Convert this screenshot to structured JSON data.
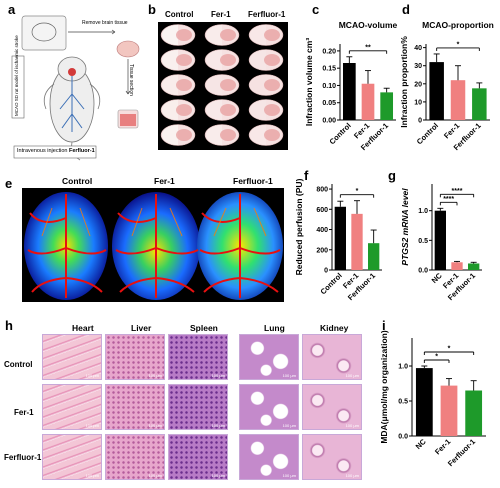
{
  "panels": {
    "a": {
      "letter": "a",
      "remove_brain": "Remove brain tissue",
      "tissue_section": "Tissue section",
      "model_text": "MCAO SD rat model of ischaemic stroke",
      "injection_prefix": "Intravenous injection ",
      "injection_drug": "Ferfluor-1"
    },
    "b": {
      "letter": "b",
      "columns": [
        "Control",
        "Fer-1",
        "Ferfluor-1"
      ]
    },
    "e": {
      "letter": "e",
      "columns": [
        "Control",
        "Fer-1",
        "Ferfluor-1"
      ]
    },
    "h": {
      "letter": "h",
      "columns": [
        "Heart",
        "Liver",
        "Spleen",
        "Lung",
        "Kidney"
      ],
      "rows": [
        "Control",
        "Fer-1",
        "Ferfluor-1"
      ],
      "scale_label": "100 μm"
    }
  },
  "chart_data": [
    {
      "id": "c",
      "type": "bar",
      "title": "MCAO-volume",
      "ylabel": "Infraction volume cm³",
      "categories": [
        "Control",
        "Fer-1",
        "Ferfluor-1"
      ],
      "values": [
        0.165,
        0.105,
        0.08
      ],
      "errors": [
        0.018,
        0.038,
        0.012
      ],
      "colors": [
        "#000000",
        "#f08080",
        "#1e9a2a"
      ],
      "ylim": [
        0,
        0.22
      ],
      "yticks": [
        "0.00",
        "0.05",
        "0.10",
        "0.15",
        "0.20"
      ],
      "annotations": [
        {
          "from": 0,
          "to": 2,
          "label": "**"
        }
      ]
    },
    {
      "id": "d",
      "type": "bar",
      "title": "MCAO-proportion",
      "ylabel": "Infraction proportion%",
      "categories": [
        "Control",
        "Fer-1",
        "Ferfluor-1"
      ],
      "values": [
        32,
        22,
        17.5
      ],
      "errors": [
        4.5,
        8,
        3
      ],
      "colors": [
        "#000000",
        "#f08080",
        "#1e9a2a"
      ],
      "ylim": [
        0,
        42
      ],
      "yticks": [
        "0",
        "10",
        "20",
        "30",
        "40"
      ],
      "annotations": [
        {
          "from": 0,
          "to": 2,
          "label": "*"
        }
      ]
    },
    {
      "id": "f",
      "type": "bar",
      "title": "",
      "ylabel": "Reduced perfusion (PU)",
      "categories": [
        "Control",
        "Fer-1",
        "Ferfluor-1"
      ],
      "values": [
        625,
        555,
        265
      ],
      "errors": [
        55,
        130,
        130
      ],
      "colors": [
        "#000000",
        "#f08080",
        "#1e9a2a"
      ],
      "ylim": [
        0,
        850
      ],
      "yticks": [
        "0",
        "200",
        "400",
        "600",
        "800"
      ],
      "annotations": [
        {
          "from": 0,
          "to": 2,
          "label": "*"
        }
      ]
    },
    {
      "id": "g",
      "type": "bar",
      "title": "",
      "ylabel": "PTGS2 mRNA level",
      "categories": [
        "NC",
        "Fer-1",
        "Ferfluor-1"
      ],
      "values": [
        1.0,
        0.13,
        0.11
      ],
      "errors": [
        0.04,
        0.015,
        0.02
      ],
      "colors": [
        "#000000",
        "#f08080",
        "#1e9a2a"
      ],
      "ylim": [
        0,
        1.45
      ],
      "yticks": [
        "0.0",
        "0.5",
        "1.0"
      ],
      "annotations": [
        {
          "from": 0,
          "to": 1,
          "label": "****"
        },
        {
          "from": 0,
          "to": 2,
          "label": "****"
        }
      ]
    },
    {
      "id": "i",
      "type": "bar",
      "title": "",
      "ylabel": "MDA(μmol/mg organization)",
      "categories": [
        "NC",
        "Fer-1",
        "Ferfluor-1"
      ],
      "values": [
        0.97,
        0.72,
        0.65
      ],
      "errors": [
        0.03,
        0.1,
        0.14
      ],
      "colors": [
        "#000000",
        "#f08080",
        "#1e9a2a"
      ],
      "ylim": [
        0,
        1.4
      ],
      "yticks": [
        "0.0",
        "0.5",
        "1.0"
      ],
      "annotations": [
        {
          "from": 0,
          "to": 1,
          "label": "*"
        },
        {
          "from": 0,
          "to": 2,
          "label": "*"
        }
      ]
    }
  ]
}
